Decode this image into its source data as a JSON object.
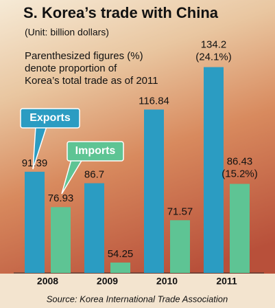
{
  "chart_data": {
    "type": "bar",
    "title": "S. Korea’s trade with China",
    "subtitle": "(Unit: billion dollars)",
    "note": [
      "Parenthesized figures (%)",
      "denote proportion of",
      "Korea’s total trade as of 2011"
    ],
    "source": "Source: Korea International Trade Association",
    "categories": [
      "2008",
      "2009",
      "2010",
      "2011"
    ],
    "series": [
      {
        "name": "Exports",
        "color": "#2b9cc2",
        "values": [
          91.39,
          86.7,
          116.84,
          134.2
        ],
        "shares": [
          null,
          null,
          null,
          "(24.1%)"
        ]
      },
      {
        "name": "Imports",
        "color": "#5ec494",
        "values": [
          76.93,
          54.25,
          71.57,
          86.43
        ],
        "shares": [
          null,
          null,
          null,
          "(15.2%)"
        ]
      }
    ],
    "ylim": [
      50,
      140
    ]
  }
}
